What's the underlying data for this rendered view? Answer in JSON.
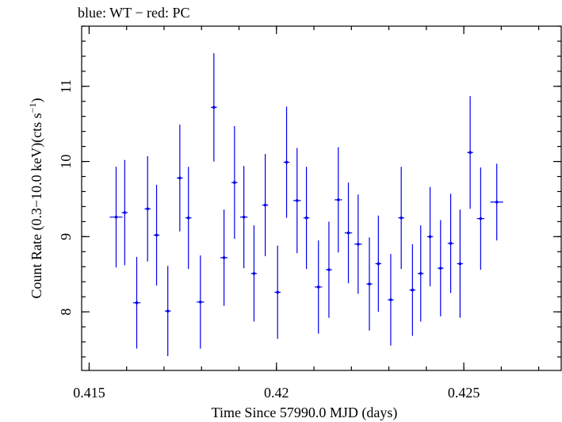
{
  "chart_data": {
    "type": "scatter",
    "title": "blue: WT − red: PC",
    "xlabel": "Time Since 57990.0 MJD (days)",
    "ylabel_main": "Count Rate (0.3−10.0 keV)(cts s",
    "ylabel_sup": "−1",
    "ylabel_end": ")",
    "xlim": [
      0.4148,
      0.4276
    ],
    "ylim": [
      7.22,
      11.8
    ],
    "x_ticks": [
      {
        "value": 0.415,
        "label": "0.415"
      },
      {
        "value": 0.42,
        "label": "0.42"
      },
      {
        "value": 0.425,
        "label": "0.425"
      }
    ],
    "y_ticks": [
      {
        "value": 8,
        "label": "8"
      },
      {
        "value": 9,
        "label": "9"
      },
      {
        "value": 10,
        "label": "10"
      },
      {
        "value": 11,
        "label": "11"
      }
    ],
    "x_minor_step": 0.001,
    "y_minor_step": 0.2,
    "series": [
      {
        "color": "#0000ee",
        "points": [
          {
            "x": 0.41572,
            "xerr": 0.00017,
            "y": 9.26,
            "yerr": 0.67
          },
          {
            "x": 0.41595,
            "xerr": 8e-05,
            "y": 9.32,
            "yerr": 0.7
          },
          {
            "x": 0.41627,
            "xerr": 0.0001,
            "y": 8.12,
            "yerr": 0.61
          },
          {
            "x": 0.41656,
            "xerr": 8e-05,
            "y": 9.37,
            "yerr": 0.7
          },
          {
            "x": 0.4168,
            "xerr": 8e-05,
            "y": 9.02,
            "yerr": 0.67
          },
          {
            "x": 0.4171,
            "xerr": 8e-05,
            "y": 8.01,
            "yerr": 0.6
          },
          {
            "x": 0.41742,
            "xerr": 8e-05,
            "y": 9.78,
            "yerr": 0.71
          },
          {
            "x": 0.41765,
            "xerr": 8e-05,
            "y": 9.25,
            "yerr": 0.68
          },
          {
            "x": 0.41797,
            "xerr": 0.0001,
            "y": 8.13,
            "yerr": 0.62
          },
          {
            "x": 0.41833,
            "xerr": 8e-05,
            "y": 10.72,
            "yerr": 0.72
          },
          {
            "x": 0.4186,
            "xerr": 0.0001,
            "y": 8.72,
            "yerr": 0.64
          },
          {
            "x": 0.41888,
            "xerr": 8e-05,
            "y": 9.72,
            "yerr": 0.75
          },
          {
            "x": 0.41913,
            "xerr": 0.0001,
            "y": 9.26,
            "yerr": 0.68
          },
          {
            "x": 0.4194,
            "xerr": 8e-05,
            "y": 8.51,
            "yerr": 0.64
          },
          {
            "x": 0.4197,
            "xerr": 8e-05,
            "y": 9.42,
            "yerr": 0.68
          },
          {
            "x": 0.42003,
            "xerr": 8e-05,
            "y": 8.26,
            "yerr": 0.62
          },
          {
            "x": 0.42027,
            "xerr": 8e-05,
            "y": 9.99,
            "yerr": 0.74
          },
          {
            "x": 0.42055,
            "xerr": 0.0001,
            "y": 9.48,
            "yerr": 0.7
          },
          {
            "x": 0.4208,
            "xerr": 8e-05,
            "y": 9.25,
            "yerr": 0.68
          },
          {
            "x": 0.42112,
            "xerr": 0.0001,
            "y": 8.33,
            "yerr": 0.62
          },
          {
            "x": 0.4214,
            "xerr": 8e-05,
            "y": 8.56,
            "yerr": 0.64
          },
          {
            "x": 0.42165,
            "xerr": 0.0001,
            "y": 9.49,
            "yerr": 0.7
          },
          {
            "x": 0.42192,
            "xerr": 0.0001,
            "y": 9.05,
            "yerr": 0.67
          },
          {
            "x": 0.42218,
            "xerr": 0.0001,
            "y": 8.9,
            "yerr": 0.66
          },
          {
            "x": 0.42248,
            "xerr": 8e-05,
            "y": 8.37,
            "yerr": 0.62
          },
          {
            "x": 0.42272,
            "xerr": 8e-05,
            "y": 8.64,
            "yerr": 0.64
          },
          {
            "x": 0.42305,
            "xerr": 8e-05,
            "y": 8.16,
            "yerr": 0.61
          },
          {
            "x": 0.42333,
            "xerr": 8e-05,
            "y": 9.25,
            "yerr": 0.68
          },
          {
            "x": 0.42363,
            "xerr": 8e-05,
            "y": 8.29,
            "yerr": 0.61
          },
          {
            "x": 0.42385,
            "xerr": 8e-05,
            "y": 8.51,
            "yerr": 0.64
          },
          {
            "x": 0.4241,
            "xerr": 8e-05,
            "y": 9.0,
            "yerr": 0.66
          },
          {
            "x": 0.42438,
            "xerr": 8e-05,
            "y": 8.58,
            "yerr": 0.64
          },
          {
            "x": 0.42465,
            "xerr": 8e-05,
            "y": 8.91,
            "yerr": 0.66
          },
          {
            "x": 0.4249,
            "xerr": 8e-05,
            "y": 8.64,
            "yerr": 0.72
          },
          {
            "x": 0.42517,
            "xerr": 8e-05,
            "y": 10.12,
            "yerr": 0.75
          },
          {
            "x": 0.42545,
            "xerr": 0.0001,
            "y": 9.24,
            "yerr": 0.68
          },
          {
            "x": 0.42588,
            "xerr": 0.00017,
            "y": 9.46,
            "yerr": 0.51
          }
        ]
      }
    ]
  }
}
